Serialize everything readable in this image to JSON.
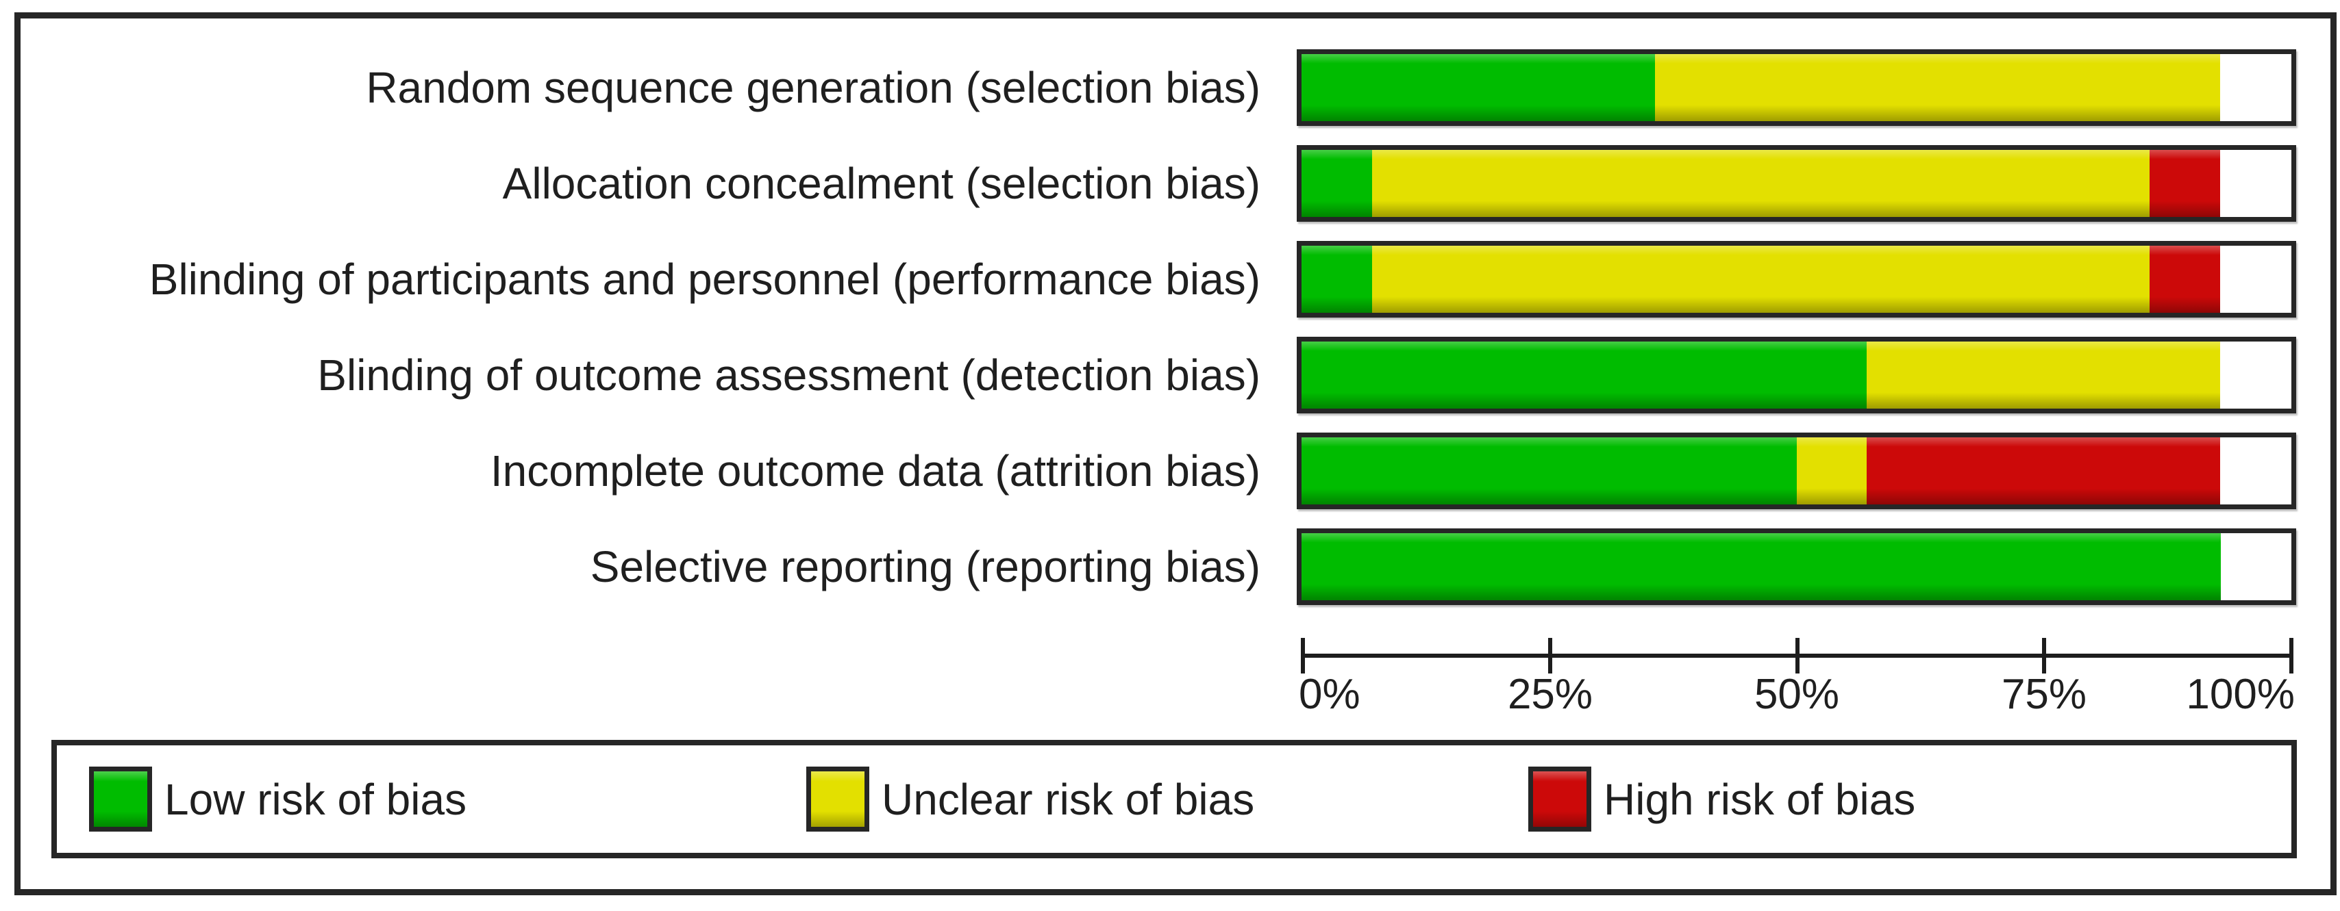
{
  "figure": {
    "background": "#ffffff",
    "frame_color": "#262626",
    "text_color": "#1f1f1f"
  },
  "chart_data": {
    "type": "bar",
    "variant": "horizontal-stacked-percentage",
    "title": "",
    "xlabel": "",
    "ylabel": "",
    "xlim": [
      0,
      100
    ],
    "grid": false,
    "legend_position": "bottom",
    "categories": [
      "Random sequence generation (selection bias)",
      "Allocation concealment (selection bias)",
      "Blinding of participants and personnel (performance bias)",
      "Blinding of outcome assessment (detection bias)",
      "Incomplete outcome data (attrition bias)",
      "Selective reporting (reporting bias)"
    ],
    "series": [
      {
        "name": "Low risk of bias",
        "color": "#00BC00",
        "values": [
          35.7,
          7.1,
          7.1,
          57.1,
          50.0,
          92.9
        ]
      },
      {
        "name": "Unclear risk of bias",
        "color": "#E3E000",
        "values": [
          57.1,
          78.6,
          78.6,
          35.7,
          7.1,
          0
        ]
      },
      {
        "name": "High risk of bias",
        "color": "#CC0909",
        "values": [
          0,
          7.1,
          7.1,
          0,
          35.7,
          0
        ]
      }
    ],
    "unfilled_remainder_percent": [
      7.2,
      7.2,
      7.2,
      7.2,
      7.2,
      7.1
    ],
    "x_ticks": [
      "0%",
      "25%",
      "50%",
      "75%",
      "100%"
    ]
  },
  "legend": {
    "items": [
      {
        "label": "Low risk of bias",
        "color": "#00BC00"
      },
      {
        "label": "Unclear risk of bias",
        "color": "#E3E000"
      },
      {
        "label": "High risk of bias",
        "color": "#CC0909"
      }
    ]
  }
}
